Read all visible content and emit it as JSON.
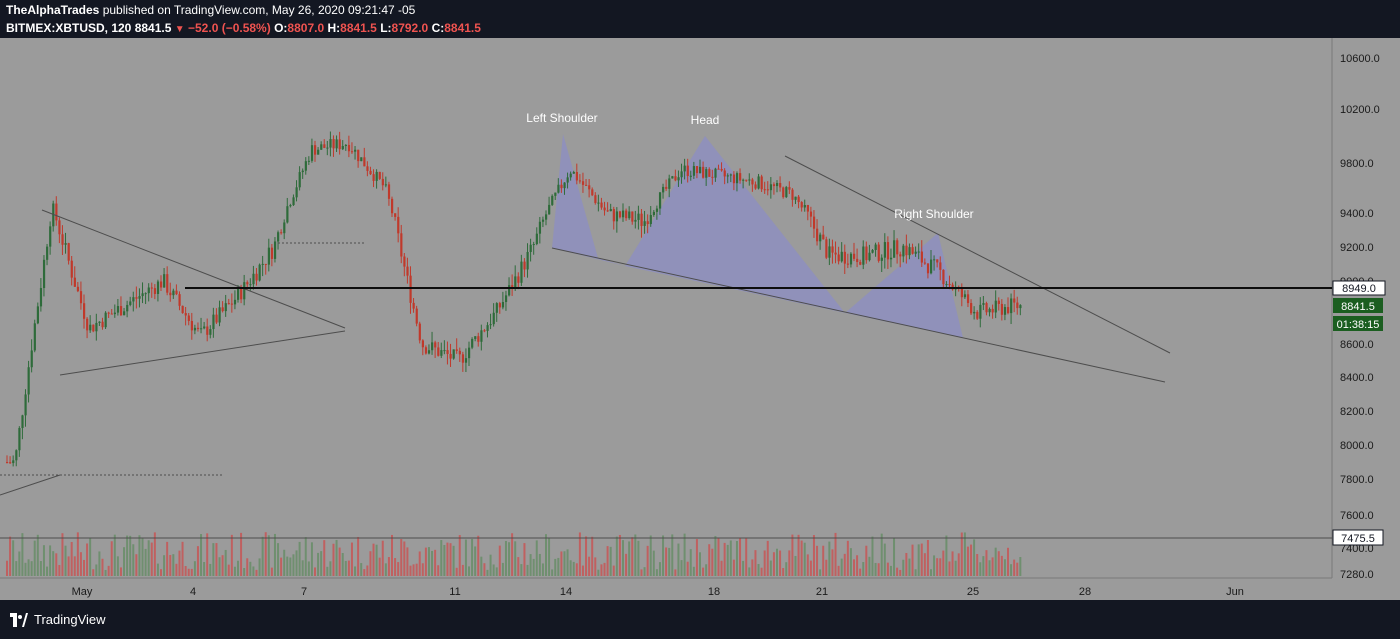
{
  "header": {
    "author": "TheAlphaTrades",
    "published_text": "published on TradingView.com, May 26, 2020 09:21:47 -05",
    "symbol": "BITMEX:XBTUSD, 120",
    "last_price": "8841.5",
    "change": "−52.0 (−0.58%)",
    "o_label": "O:",
    "o_value": "8807.0",
    "h_label": "H:",
    "h_value": "8841.5",
    "l_label": "L:",
    "l_value": "8792.0",
    "c_label": "C:",
    "c_value": "8841.5"
  },
  "footer": {
    "brand": "TradingView"
  },
  "colors": {
    "background": "#9b9b9b",
    "frame": "#131722",
    "up_candle": "#2e6b3a",
    "down_candle": "#c0392b",
    "pattern_fill": "#8c8ec4",
    "neckline": "#000000",
    "last_price_tag": "#1b5e20",
    "text_dark": "#1a1a1a"
  },
  "chart_data": {
    "type": "candlestick",
    "symbol": "BITMEX:XBTUSD",
    "interval": "120",
    "y_axis": {
      "ylim": [
        7240,
        10700
      ],
      "ticks": [
        10600,
        10200,
        9800,
        9400,
        9200,
        9000,
        8600,
        8400,
        8200,
        8000,
        7800,
        7600,
        7400,
        7280
      ],
      "tick_labels": [
        "10600.0",
        "10200.0",
        "9800.0",
        "9400.0",
        "9200.0",
        "9000.0",
        "8600.0",
        "8400.0",
        "8200.0",
        "8000.0",
        "7800.0",
        "7600.0",
        "7400.0",
        "7280.0"
      ]
    },
    "x_axis": {
      "tick_labels": [
        "May",
        "4",
        "7",
        "11",
        "14",
        "18",
        "21",
        "25",
        "28",
        "Jun"
      ]
    },
    "price_tags": [
      {
        "label": "8949.0",
        "value": 8949,
        "style": "line"
      },
      {
        "label": "8841.5",
        "value": 8841.5,
        "style": "last"
      },
      {
        "label": "01:38:15",
        "style": "countdown"
      },
      {
        "label": "7475.5",
        "value": 7475.5,
        "style": "line"
      }
    ],
    "annotations": [
      "Left Shoulder",
      "Head",
      "Right Shoulder"
    ],
    "price_anchors": [
      {
        "date": "2020-04-29",
        "price": 7900
      },
      {
        "date": "2020-04-30",
        "price": 9450
      },
      {
        "date": "2020-05-01",
        "price": 8700
      },
      {
        "date": "2020-05-03",
        "price": 9000
      },
      {
        "date": "2020-05-04",
        "price": 8650
      },
      {
        "date": "2020-05-05",
        "price": 8900
      },
      {
        "date": "2020-05-06",
        "price": 9200
      },
      {
        "date": "2020-05-07",
        "price": 9900
      },
      {
        "date": "2020-05-08",
        "price": 9950
      },
      {
        "date": "2020-05-09",
        "price": 9600
      },
      {
        "date": "2020-05-10",
        "price": 8600
      },
      {
        "date": "2020-05-11",
        "price": 8500
      },
      {
        "date": "2020-05-12",
        "price": 8800
      },
      {
        "date": "2020-05-13",
        "price": 9200
      },
      {
        "date": "2020-05-14",
        "price": 9750
      },
      {
        "date": "2020-05-15",
        "price": 9400
      },
      {
        "date": "2020-05-16",
        "price": 9350
      },
      {
        "date": "2020-05-17",
        "price": 9750
      },
      {
        "date": "2020-05-18",
        "price": 9700
      },
      {
        "date": "2020-05-19",
        "price": 9650
      },
      {
        "date": "2020-05-20",
        "price": 9550
      },
      {
        "date": "2020-05-21",
        "price": 9150
      },
      {
        "date": "2020-05-22",
        "price": 9150
      },
      {
        "date": "2020-05-23",
        "price": 9200
      },
      {
        "date": "2020-05-24",
        "price": 9050
      },
      {
        "date": "2020-05-25",
        "price": 8800
      },
      {
        "date": "2020-05-26",
        "price": 8841.5
      }
    ],
    "grid": false
  }
}
